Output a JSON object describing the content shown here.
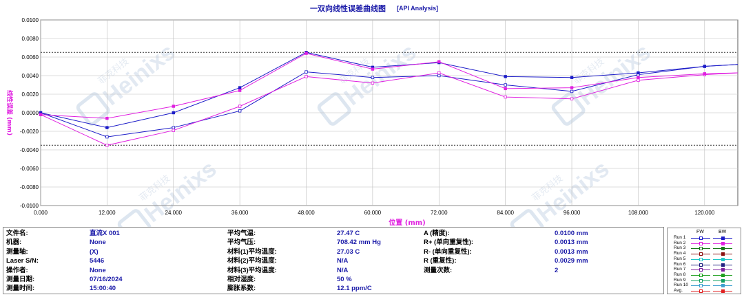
{
  "chart_data": {
    "type": "line",
    "title": "一双向线性误差曲线图",
    "subtitle": "[API Analysis]",
    "xlabel": "位置 (mm)",
    "ylabel": "线性误差 (mm)",
    "xlim": [
      0,
      126
    ],
    "ylim": [
      -0.01,
      0.01
    ],
    "x_ticks": [
      "0.000",
      "12.000",
      "24.000",
      "36.000",
      "48.000",
      "60.000",
      "72.000",
      "84.000",
      "96.000",
      "108.000",
      "120.000"
    ],
    "y_ticks": [
      "0.0100",
      "0.0080",
      "0.0060",
      "0.0040",
      "0.0020",
      "0.0000",
      "-0.0020",
      "-0.0040",
      "-0.0060",
      "-0.0080",
      "-0.0100"
    ],
    "limit_lines": [
      0.0065,
      -0.0035
    ],
    "grid": true,
    "x": [
      0,
      12,
      24,
      36,
      48,
      60,
      72,
      84,
      96,
      108,
      120,
      126
    ],
    "series": [
      {
        "name": "Run 1",
        "direction": "FW",
        "color": "#1c1cc8",
        "values": [
          0.0,
          -0.0026,
          -0.0016,
          0.0002,
          0.0044,
          0.0038,
          0.004,
          0.003,
          0.0023,
          0.0041,
          0.005,
          0.0052
        ]
      },
      {
        "name": "Run 1",
        "direction": "BW",
        "color": "#1c1cc8",
        "values": [
          0.0,
          -0.0016,
          0.0,
          0.0027,
          0.0065,
          0.0049,
          0.0054,
          0.0039,
          0.0038,
          0.0043,
          0.005,
          0.0052
        ]
      },
      {
        "name": "Run 2",
        "direction": "FW",
        "color": "#e020e0",
        "values": [
          -0.0002,
          -0.0035,
          -0.0019,
          0.0007,
          0.0039,
          0.0032,
          0.0043,
          0.0017,
          0.0015,
          0.0035,
          0.0041,
          0.0043
        ]
      },
      {
        "name": "Run 2",
        "direction": "BW",
        "color": "#e020e0",
        "values": [
          -0.0002,
          -0.0006,
          0.0007,
          0.0024,
          0.0064,
          0.0047,
          0.0055,
          0.0026,
          0.0027,
          0.0038,
          0.0042,
          0.0043
        ]
      }
    ],
    "legend": {
      "headers": [
        "FW",
        "BW"
      ],
      "entries": [
        {
          "name": "Run 1",
          "color": "#1c1cc8"
        },
        {
          "name": "Run 2",
          "color": "#e020e0"
        },
        {
          "name": "Run 3",
          "color": "#1a7a1a"
        },
        {
          "name": "Run 4",
          "color": "#8b1010"
        },
        {
          "name": "Run 5",
          "color": "#20c8c8"
        },
        {
          "name": "Run 6",
          "color": "#202080"
        },
        {
          "name": "Run 7",
          "color": "#8020a0"
        },
        {
          "name": "Run 8",
          "color": "#20a020"
        },
        {
          "name": "Run 9",
          "color": "#10a060"
        },
        {
          "name": "Run 10",
          "color": "#40a0d0"
        },
        {
          "name": "Avg.",
          "color": "#e02020"
        }
      ]
    }
  },
  "watermark": {
    "text": "Heinixs",
    "cn": "菲克科技"
  },
  "info": {
    "col1": [
      {
        "label": "文件名:",
        "value": "直流X 001"
      },
      {
        "label": "机器:",
        "value": "None"
      },
      {
        "label": "测量轴:",
        "value": "(X)"
      },
      {
        "label": "Laser S/N:",
        "value": "5446"
      },
      {
        "label": "操作者:",
        "value": "None"
      },
      {
        "label": "测量日期:",
        "value": "07/16/2024"
      },
      {
        "label": "测量时间:",
        "value": "15:00:40"
      }
    ],
    "col2": [
      {
        "label": "平均气温:",
        "value": "27.47 C"
      },
      {
        "label": "平均气压:",
        "value": "708.42 mm Hg"
      },
      {
        "label": "材料(1)平均温度:",
        "value": "27.03 C"
      },
      {
        "label": "材料(2)平均温度:",
        "value": "N/A"
      },
      {
        "label": "材料(3)平均温度:",
        "value": "N/A"
      },
      {
        "label": "相对湿度:",
        "value": "50 %"
      },
      {
        "label": "膨胀系数:",
        "value": "12.1 ppm/C"
      }
    ],
    "col3": [
      {
        "label": "A (精度):",
        "value": "0.0100 mm"
      },
      {
        "label": "R+ (单向重复性):",
        "value": "0.0013 mm"
      },
      {
        "label": "R- (单向重复性):",
        "value": "0.0013 mm"
      },
      {
        "label": "R (重复性):",
        "value": "0.0029 mm"
      },
      {
        "label": "测量次数:",
        "value": "2"
      }
    ]
  }
}
